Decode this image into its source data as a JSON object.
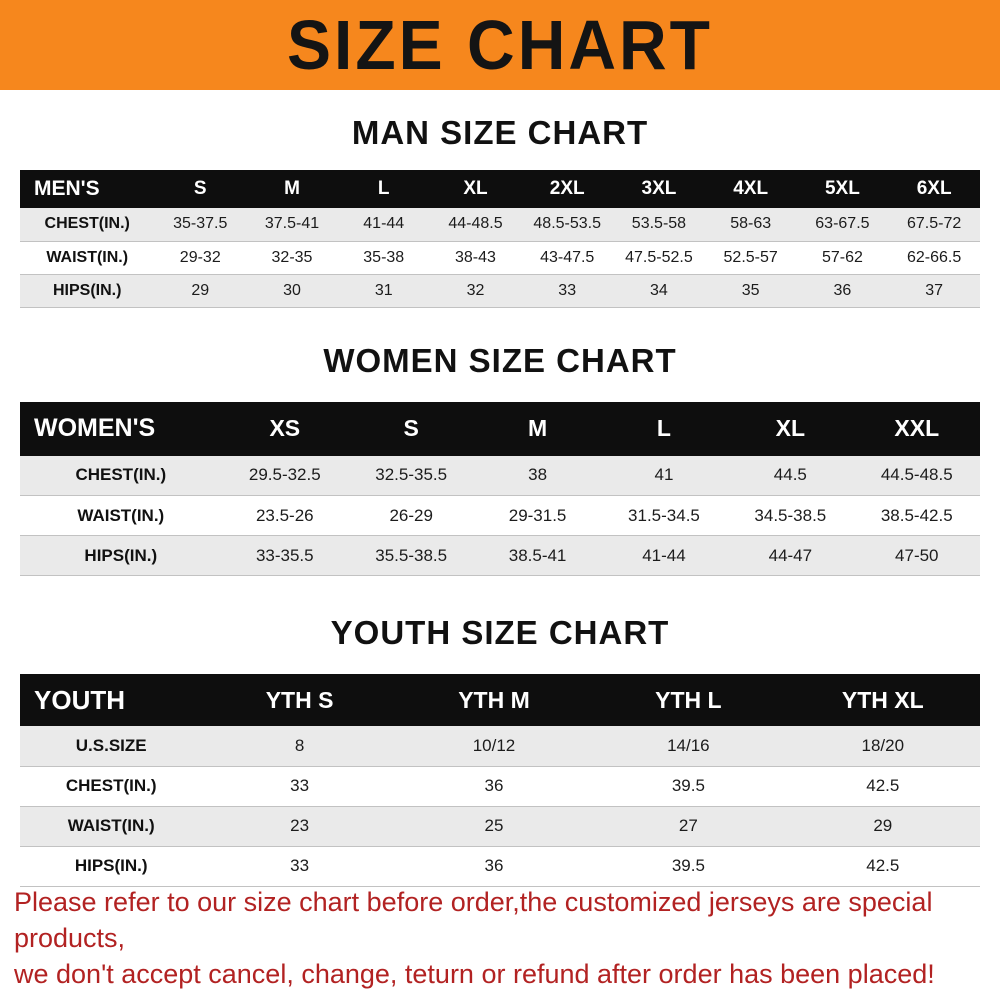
{
  "banner": {
    "title": "SIZE CHART",
    "bg_color": "#f6871d",
    "text_color": "#141414"
  },
  "sections": {
    "men": {
      "heading": "MAN SIZE CHART",
      "table": {
        "header": [
          "MEN'S",
          "S",
          "M",
          "L",
          "XL",
          "2XL",
          "3XL",
          "4XL",
          "5XL",
          "6XL"
        ],
        "rows": [
          [
            "CHEST(IN.)",
            "35-37.5",
            "37.5-41",
            "41-44",
            "44-48.5",
            "48.5-53.5",
            "53.5-58",
            "58-63",
            "63-67.5",
            "67.5-72"
          ],
          [
            "WAIST(IN.)",
            "29-32",
            "32-35",
            "35-38",
            "38-43",
            "43-47.5",
            "47.5-52.5",
            "52.5-57",
            "57-62",
            "62-66.5"
          ],
          [
            "HIPS(IN.)",
            "29",
            "30",
            "31",
            "32",
            "33",
            "34",
            "35",
            "36",
            "37"
          ]
        ]
      }
    },
    "women": {
      "heading": "WOMEN SIZE CHART",
      "table": {
        "header": [
          "WOMEN'S",
          "XS",
          "S",
          "M",
          "L",
          "XL",
          "XXL"
        ],
        "rows": [
          [
            "CHEST(IN.)",
            "29.5-32.5",
            "32.5-35.5",
            "38",
            "41",
            "44.5",
            "44.5-48.5"
          ],
          [
            "WAIST(IN.)",
            "23.5-26",
            "26-29",
            "29-31.5",
            "31.5-34.5",
            "34.5-38.5",
            "38.5-42.5"
          ],
          [
            "HIPS(IN.)",
            "33-35.5",
            "35.5-38.5",
            "38.5-41",
            "41-44",
            "44-47",
            "47-50"
          ]
        ]
      }
    },
    "youth": {
      "heading": "YOUTH SIZE CHART",
      "table": {
        "header": [
          "YOUTH",
          "YTH S",
          "YTH M",
          "YTH L",
          "YTH XL"
        ],
        "rows": [
          [
            "U.S.SIZE",
            "8",
            "10/12",
            "14/16",
            "18/20"
          ],
          [
            "CHEST(IN.)",
            "33",
            "36",
            "39.5",
            "42.5"
          ],
          [
            "WAIST(IN.)",
            "23",
            "25",
            "27",
            "29"
          ],
          [
            "HIPS(IN.)",
            "33",
            "36",
            "39.5",
            "42.5"
          ]
        ]
      }
    }
  },
  "footer": {
    "line1": "Please refer to our size chart before order,the customized jerseys are special products,",
    "line2": "we don't accept cancel, change, teturn or refund after order has been placed!",
    "color": "#b22222"
  }
}
